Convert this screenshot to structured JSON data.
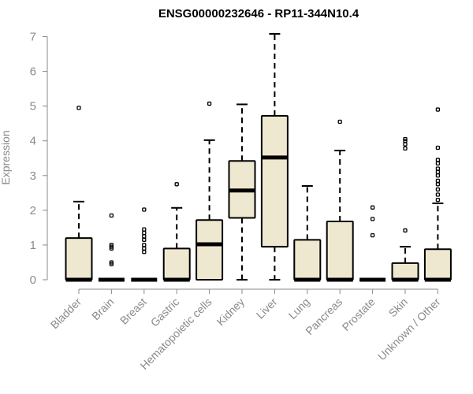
{
  "chart_data": {
    "type": "boxplot",
    "title": "ENSG00000232646 - RP11-344N10.4",
    "xlabel": "",
    "ylabel": "Expression",
    "ylim": [
      0,
      7
    ],
    "yticks": [
      0,
      1,
      2,
      3,
      4,
      5,
      6,
      7
    ],
    "box_fill": "#efe8d0",
    "categories": [
      "Bladder",
      "Brain",
      "Breast",
      "Gastric",
      "Hematopoietic cells",
      "Kidney",
      "Liver",
      "Lung",
      "Pancreas",
      "Prostate",
      "Skin",
      "Unknown / Other"
    ],
    "boxes": [
      {
        "min": 0,
        "q1": 0,
        "median": 0,
        "q3": 1.2,
        "max": 2.25,
        "outliers": [
          4.95
        ]
      },
      {
        "min": 0,
        "q1": 0,
        "median": 0,
        "q3": 0,
        "max": 0,
        "outliers": [
          0.45,
          0.5,
          0.9,
          0.95,
          1.0,
          1.85
        ]
      },
      {
        "min": 0,
        "q1": 0,
        "median": 0,
        "q3": 0,
        "max": 0,
        "outliers": [
          0.8,
          0.9,
          1.0,
          1.15,
          1.25,
          1.35,
          1.45,
          2.02
        ]
      },
      {
        "min": 0,
        "q1": 0,
        "median": 0,
        "q3": 0.9,
        "max": 2.07,
        "outliers": [
          2.75
        ]
      },
      {
        "min": 0,
        "q1": 0,
        "median": 1.02,
        "q3": 1.72,
        "max": 4.02,
        "outliers": [
          5.07
        ]
      },
      {
        "min": 0,
        "q1": 1.78,
        "median": 2.57,
        "q3": 3.42,
        "max": 5.05,
        "outliers": []
      },
      {
        "min": 0,
        "q1": 0.95,
        "median": 3.52,
        "q3": 4.72,
        "max": 7.08,
        "outliers": []
      },
      {
        "min": 0,
        "q1": 0,
        "median": 0,
        "q3": 1.15,
        "max": 2.7,
        "outliers": []
      },
      {
        "min": 0,
        "q1": 0,
        "median": 0,
        "q3": 1.68,
        "max": 3.72,
        "outliers": [
          4.55
        ]
      },
      {
        "min": 0,
        "q1": 0,
        "median": 0,
        "q3": 0,
        "max": 0,
        "outliers": [
          1.28,
          1.75,
          2.08
        ]
      },
      {
        "min": 0,
        "q1": 0,
        "median": 0,
        "q3": 0.48,
        "max": 0.95,
        "outliers": [
          1.42,
          3.78,
          3.9,
          4.0,
          4.05
        ]
      },
      {
        "min": 0,
        "q1": 0,
        "median": 0,
        "q3": 0.88,
        "max": 2.2,
        "outliers": [
          2.3,
          2.45,
          2.6,
          2.75,
          2.85,
          3.0,
          3.1,
          3.2,
          3.35,
          3.45,
          3.8,
          4.9
        ]
      }
    ]
  }
}
